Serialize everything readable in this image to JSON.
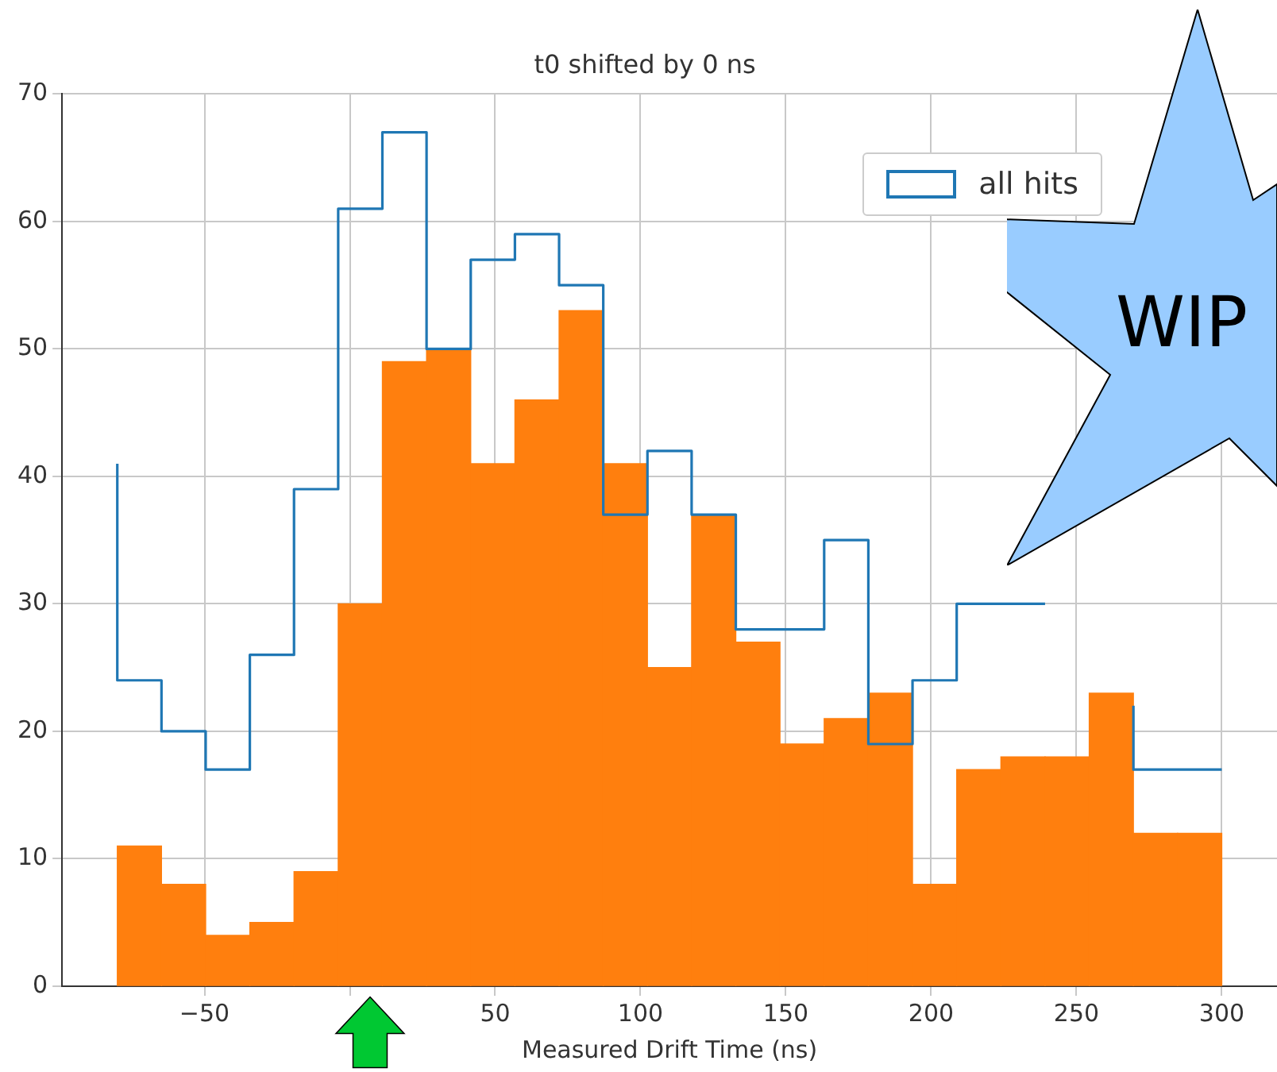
{
  "chart_data": {
    "type": "histogram",
    "title": "t0 shifted by 0 ns",
    "xlabel": "Measured Drift Time (ns)",
    "bins": [
      -80,
      -64.8,
      -49.6,
      -34.4,
      -19.2,
      -4,
      11.2,
      26.4,
      41.6,
      56.8,
      72,
      87.2,
      102.4,
      117.6,
      132.8,
      148,
      163.2,
      178.4,
      193.6,
      208.8,
      224,
      239.2,
      254.4,
      269.6,
      284.8,
      300
    ],
    "series": [
      {
        "name": "all hits",
        "type": "step",
        "color": "#1f77b4",
        "x": [
          -80,
          -64.8,
          -49.6,
          -34.4,
          -19.2,
          -4,
          11.2,
          26.4,
          41.6,
          56.8,
          72,
          87.2,
          102.4,
          117.6,
          132.8,
          148,
          163.2,
          178.4,
          193.6,
          208.8,
          224,
          239.2,
          254.4,
          269.6,
          284.8,
          300
        ],
        "values": [
          41,
          24,
          20,
          17,
          26,
          39,
          61,
          67,
          50,
          57,
          59,
          55,
          37,
          42,
          37,
          28,
          28,
          35,
          19,
          24,
          30,
          30,
          null,
          22,
          17,
          17
        ]
      },
      {
        "color": "#ff7f0e",
        "values": [
          11,
          8,
          4,
          5,
          9,
          30,
          49,
          50,
          41,
          46,
          53,
          41,
          25,
          37,
          27,
          19,
          21,
          23,
          8,
          17,
          18,
          18,
          23,
          12,
          12
        ]
      }
    ],
    "xlim": [
      -99,
      319
    ],
    "xticks": [
      -50,
      {
        "value": 0,
        "label": null
      },
      50,
      100,
      150,
      200,
      250,
      300
    ],
    "ylim": [
      0,
      70
    ],
    "yticks": [
      0,
      10,
      20,
      30,
      40,
      50,
      60,
      70
    ],
    "grid": true,
    "legend": "top right",
    "annotations": [
      "WIP"
    ]
  }
}
